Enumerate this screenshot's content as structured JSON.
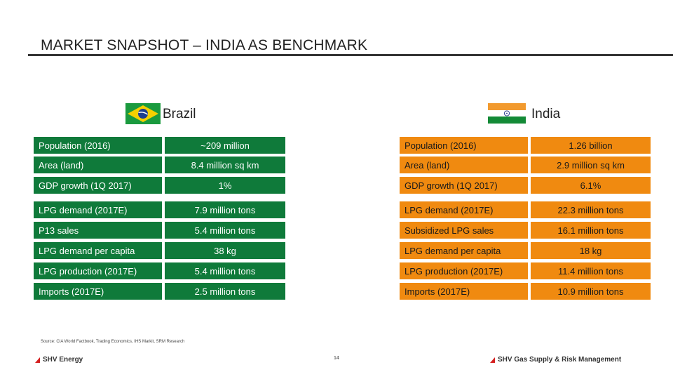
{
  "title": "MARKET SNAPSHOT – INDIA AS BENCHMARK",
  "brazil": {
    "name": "Brazil",
    "rows": [
      {
        "label": "Population (2016)",
        "value": "~209 million"
      },
      {
        "label": "Area (land)",
        "value": "8.4 million sq km"
      },
      {
        "label": "GDP growth (1Q 2017)",
        "value": "1%"
      },
      {
        "label": "LPG demand (2017E)",
        "value": "7.9 million tons"
      },
      {
        "label": "P13 sales",
        "value": "5.4 million tons"
      },
      {
        "label": "LPG demand per capita",
        "value": "38 kg"
      },
      {
        "label": "LPG production (2017E)",
        "value": "5.4 million tons"
      },
      {
        "label": "Imports (2017E)",
        "value": "2.5 million tons"
      }
    ]
  },
  "india": {
    "name": "India",
    "rows": [
      {
        "label": "Population (2016)",
        "value": "1.26 billion"
      },
      {
        "label": "Area (land)",
        "value": "2.9 million sq km"
      },
      {
        "label": "GDP growth (1Q 2017)",
        "value": "6.1%"
      },
      {
        "label": "LPG demand (2017E)",
        "value": "22.3 million tons"
      },
      {
        "label": "Subsidized LPG sales",
        "value": "16.1 million tons"
      },
      {
        "label": "LPG demand per capita",
        "value": "18 kg"
      },
      {
        "label": "LPG production (2017E)",
        "value": "11.4 million tons"
      },
      {
        "label": "Imports (2017E)",
        "value": "10.9 million tons"
      }
    ]
  },
  "colors": {
    "brazil_table": "#0f7a3a",
    "india_table": "#f08a10",
    "accent_red": "#d42020"
  },
  "source": "Source: CIA World Factbook, Trading Economics, IHS Markit, SRM Research",
  "page_number": "14",
  "footer_left": "SHV Energy",
  "footer_right": "SHV Gas Supply & Risk Management"
}
